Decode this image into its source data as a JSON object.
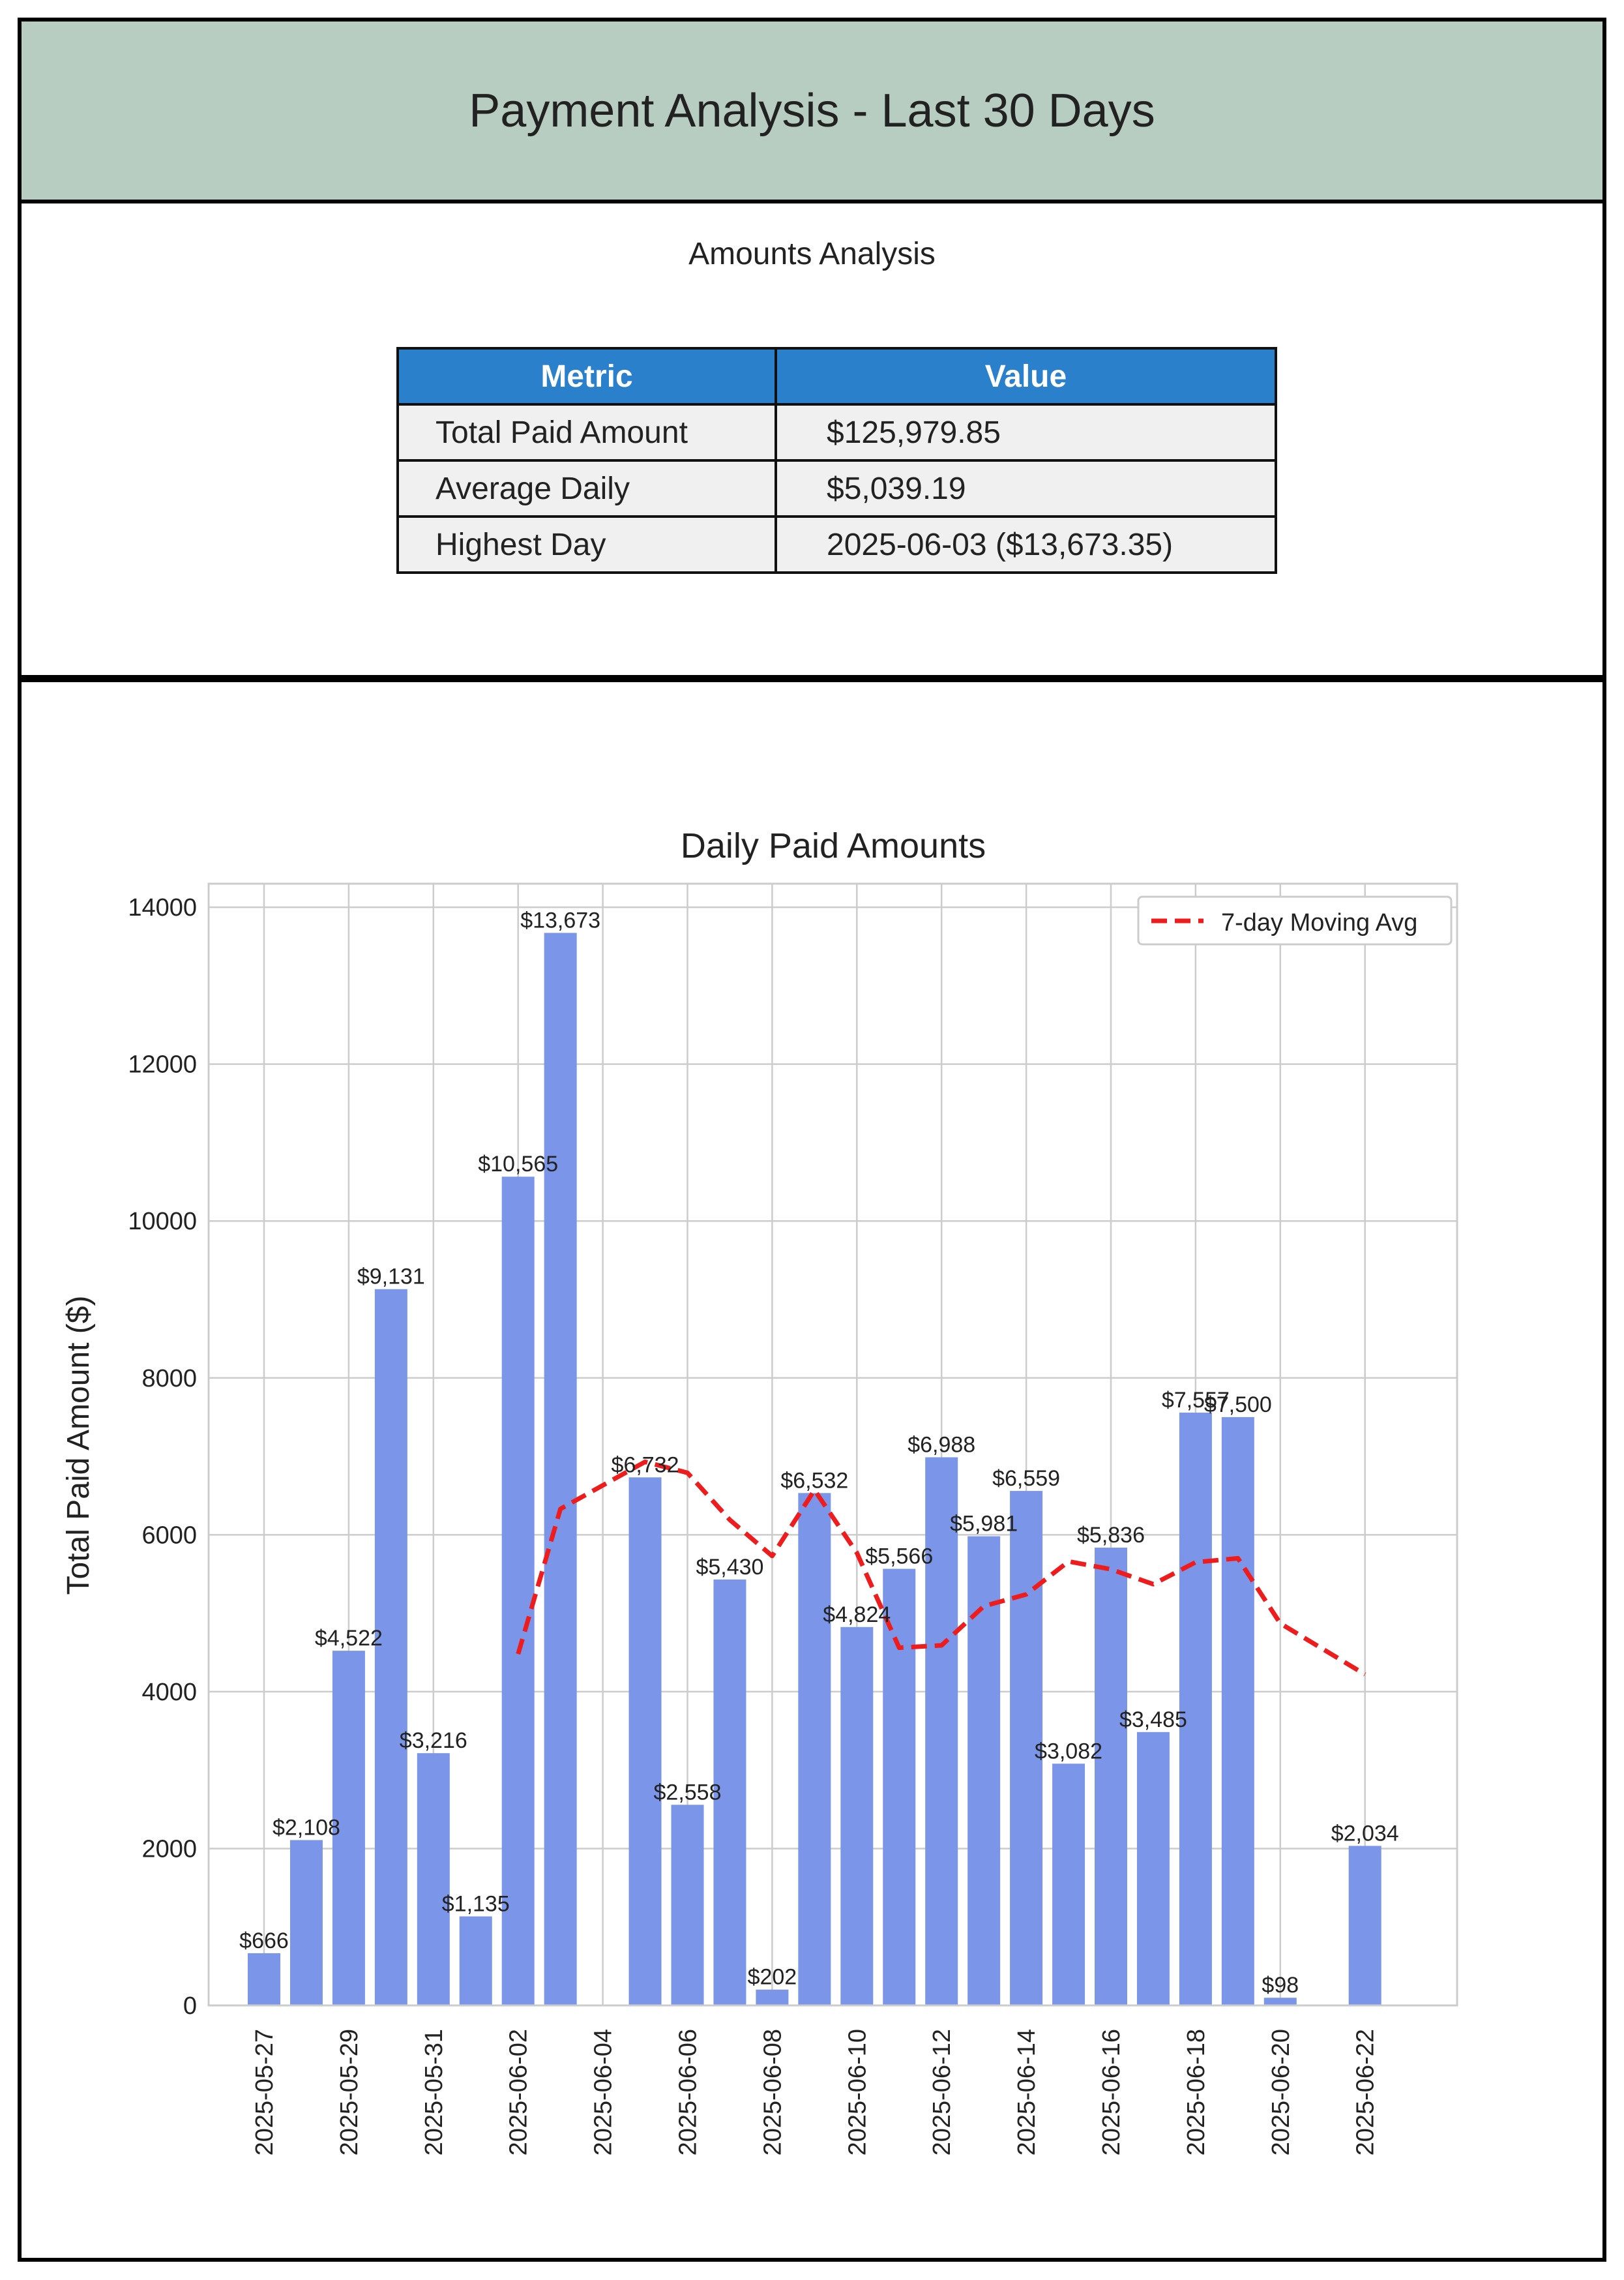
{
  "header": {
    "title": "Payment Analysis - Last 30 Days"
  },
  "summary": {
    "caption": "Amounts Analysis",
    "columns": [
      "Metric",
      "Value"
    ],
    "rows": [
      {
        "metric": "Total Paid Amount",
        "value": "$125,979.85"
      },
      {
        "metric": "Average Daily",
        "value": "$5,039.19"
      },
      {
        "metric": "Highest Day",
        "value": "2025-06-03 ($13,673.35)"
      }
    ]
  },
  "chart_data": {
    "type": "bar",
    "title": "Daily Paid Amounts",
    "xlabel": "",
    "ylabel": "Total Paid Amount ($)",
    "ylim": [
      0,
      14300
    ],
    "yticks": [
      0,
      2000,
      4000,
      6000,
      8000,
      10000,
      12000,
      14000
    ],
    "xticks": [
      "2025-05-27",
      "2025-05-29",
      "2025-05-31",
      "2025-06-02",
      "2025-06-04",
      "2025-06-06",
      "2025-06-08",
      "2025-06-10",
      "2025-06-12",
      "2025-06-14",
      "2025-06-16",
      "2025-06-18",
      "2025-06-20",
      "2025-06-22"
    ],
    "grid": true,
    "legend_position": "top-right",
    "bar_color": "#7b96e8",
    "line_color": "#ee1c1c",
    "series": [
      {
        "type": "bar",
        "points": [
          {
            "x": "2025-05-27",
            "y": 666,
            "label": "$666"
          },
          {
            "x": "2025-05-28",
            "y": 2108,
            "label": "$2,108"
          },
          {
            "x": "2025-05-29",
            "y": 4522,
            "label": "$4,522"
          },
          {
            "x": "2025-05-30",
            "y": 9131,
            "label": "$9,131"
          },
          {
            "x": "2025-05-31",
            "y": 3216,
            "label": "$3,216"
          },
          {
            "x": "2025-06-01",
            "y": 1135,
            "label": "$1,135"
          },
          {
            "x": "2025-06-02",
            "y": 10565,
            "label": "$10,565"
          },
          {
            "x": "2025-06-03",
            "y": 13673,
            "label": "$13,673"
          },
          {
            "x": "2025-06-05",
            "y": 6732,
            "label": "$6,732"
          },
          {
            "x": "2025-06-06",
            "y": 2558,
            "label": "$2,558"
          },
          {
            "x": "2025-06-07",
            "y": 5430,
            "label": "$5,430"
          },
          {
            "x": "2025-06-08",
            "y": 202,
            "label": "$202"
          },
          {
            "x": "2025-06-09",
            "y": 6532,
            "label": "$6,532"
          },
          {
            "x": "2025-06-10",
            "y": 4824,
            "label": "$4,824"
          },
          {
            "x": "2025-06-11",
            "y": 5566,
            "label": "$5,566"
          },
          {
            "x": "2025-06-12",
            "y": 6988,
            "label": "$6,988"
          },
          {
            "x": "2025-06-13",
            "y": 5981,
            "label": "$5,981"
          },
          {
            "x": "2025-06-14",
            "y": 6559,
            "label": "$6,559"
          },
          {
            "x": "2025-06-15",
            "y": 3082,
            "label": "$3,082"
          },
          {
            "x": "2025-06-16",
            "y": 5836,
            "label": "$5,836"
          },
          {
            "x": "2025-06-17",
            "y": 3485,
            "label": "$3,485"
          },
          {
            "x": "2025-06-18",
            "y": 7557,
            "label": "$7,557"
          },
          {
            "x": "2025-06-19",
            "y": 7500,
            "label": "$7,500"
          },
          {
            "x": "2025-06-20",
            "y": 98,
            "label": "$98"
          },
          {
            "x": "2025-06-22",
            "y": 2034,
            "label": "$2,034"
          }
        ]
      },
      {
        "type": "line",
        "name": "7-day Moving Avg",
        "style": "dashed",
        "points": [
          {
            "x": "2025-06-02",
            "y": 4480
          },
          {
            "x": "2025-06-03",
            "y": 6330
          },
          {
            "x": "2025-06-05",
            "y": 6930
          },
          {
            "x": "2025-06-06",
            "y": 6790
          },
          {
            "x": "2025-06-07",
            "y": 6190
          },
          {
            "x": "2025-06-08",
            "y": 5730
          },
          {
            "x": "2025-06-09",
            "y": 6570
          },
          {
            "x": "2025-06-10",
            "y": 5770
          },
          {
            "x": "2025-06-11",
            "y": 4560
          },
          {
            "x": "2025-06-12",
            "y": 4590
          },
          {
            "x": "2025-06-13",
            "y": 5090
          },
          {
            "x": "2025-06-14",
            "y": 5240
          },
          {
            "x": "2025-06-15",
            "y": 5660
          },
          {
            "x": "2025-06-16",
            "y": 5560
          },
          {
            "x": "2025-06-17",
            "y": 5370
          },
          {
            "x": "2025-06-18",
            "y": 5650
          },
          {
            "x": "2025-06-19",
            "y": 5700
          },
          {
            "x": "2025-06-20",
            "y": 4870
          },
          {
            "x": "2025-06-22",
            "y": 4220
          }
        ]
      }
    ]
  }
}
